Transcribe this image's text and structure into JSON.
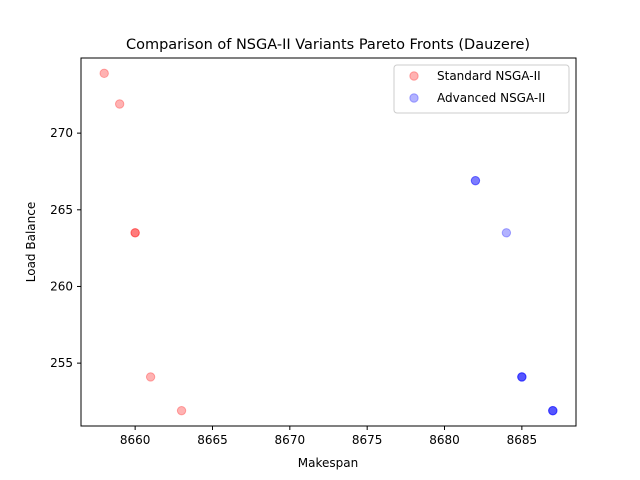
{
  "chart_data": {
    "type": "scatter",
    "title": "Comparison of NSGA-II Variants Pareto Fronts (Dauzere)",
    "xlabel": "Makespan",
    "ylabel": "Load Balance",
    "xlim": [
      8656.5,
      8688.5
    ],
    "ylim": [
      250.9,
      274.9
    ],
    "xticks": [
      8660,
      8665,
      8670,
      8675,
      8680,
      8685
    ],
    "yticks": [
      255,
      260,
      265,
      270
    ],
    "grid": false,
    "legend_position": "top-right",
    "series": [
      {
        "name": "Standard NSGA-II",
        "color": "#ff0000",
        "alpha": 0.3,
        "points": [
          {
            "x": 8658,
            "y": 273.9
          },
          {
            "x": 8659,
            "y": 271.9
          },
          {
            "x": 8660,
            "y": 263.5
          },
          {
            "x": 8660,
            "y": 263.5
          },
          {
            "x": 8661,
            "y": 254.1
          },
          {
            "x": 8663,
            "y": 251.9
          }
        ]
      },
      {
        "name": "Advanced NSGA-II",
        "color": "#0000ff",
        "alpha": 0.3,
        "points": [
          {
            "x": 8682,
            "y": 266.9
          },
          {
            "x": 8682,
            "y": 266.9
          },
          {
            "x": 8684,
            "y": 263.5
          },
          {
            "x": 8685,
            "y": 254.1
          },
          {
            "x": 8685,
            "y": 254.1
          },
          {
            "x": 8685,
            "y": 254.1
          },
          {
            "x": 8687,
            "y": 251.9
          },
          {
            "x": 8687,
            "y": 251.9
          },
          {
            "x": 8687,
            "y": 251.9
          }
        ]
      }
    ]
  }
}
